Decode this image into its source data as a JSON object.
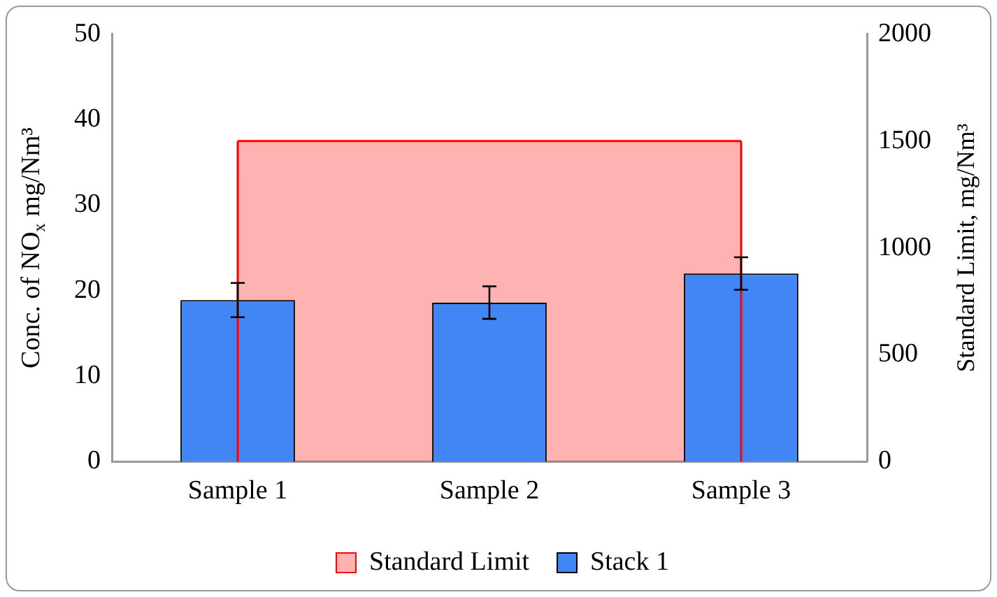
{
  "chart_data": {
    "type": "bar",
    "categories": [
      "Sample 1",
      "Sample 2",
      "Sample 3"
    ],
    "ylabel": "Conc. of NO$_{x}$ mg/Nm³",
    "y2label": "Standard Limit, mg/Nm³",
    "ylim": [
      0,
      50
    ],
    "yticks": [
      0,
      10,
      20,
      30,
      40,
      50
    ],
    "y2lim": [
      0,
      2000
    ],
    "y2ticks": [
      0,
      500,
      1000,
      1500,
      2000
    ],
    "grid": false,
    "legend": "bottom",
    "series": [
      {
        "name": "Standard Limit",
        "type": "area",
        "axis": "y2",
        "color": "#ff0000",
        "values": [
          1500,
          1500,
          1500
        ]
      },
      {
        "name": "Stack 1",
        "color": "#4285f4",
        "values": [
          18.9,
          18.6,
          22
        ],
        "errors": [
          2,
          1.9,
          1.9
        ]
      }
    ]
  }
}
